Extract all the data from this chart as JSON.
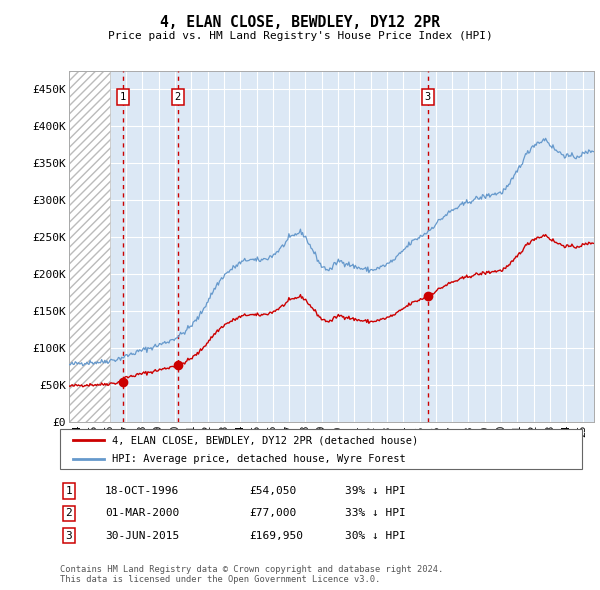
{
  "title": "4, ELAN CLOSE, BEWDLEY, DY12 2PR",
  "subtitle": "Price paid vs. HM Land Registry's House Price Index (HPI)",
  "ylabel_ticks": [
    "£0",
    "£50K",
    "£100K",
    "£150K",
    "£200K",
    "£250K",
    "£300K",
    "£350K",
    "£400K",
    "£450K"
  ],
  "ytick_values": [
    0,
    50000,
    100000,
    150000,
    200000,
    250000,
    300000,
    350000,
    400000,
    450000
  ],
  "ylim": [
    0,
    475000
  ],
  "xlim_start": 1993.5,
  "xlim_end": 2025.7,
  "sale_dates": [
    1996.8,
    2000.17,
    2015.5
  ],
  "sale_prices": [
    54050,
    77000,
    169950
  ],
  "sale_labels": [
    "1",
    "2",
    "3"
  ],
  "vline_color": "#cc0000",
  "sale_dot_color": "#cc0000",
  "hpi_line_color": "#6699cc",
  "price_line_color": "#cc0000",
  "legend_entries": [
    "4, ELAN CLOSE, BEWDLEY, DY12 2PR (detached house)",
    "HPI: Average price, detached house, Wyre Forest"
  ],
  "table_rows": [
    [
      "1",
      "18-OCT-1996",
      "£54,050",
      "39% ↓ HPI"
    ],
    [
      "2",
      "01-MAR-2000",
      "£77,000",
      "33% ↓ HPI"
    ],
    [
      "3",
      "30-JUN-2015",
      "£169,950",
      "30% ↓ HPI"
    ]
  ],
  "footer": "Contains HM Land Registry data © Crown copyright and database right 2024.\nThis data is licensed under the Open Government Licence v3.0.",
  "hatch_start": 1993.5,
  "hatch_end": 1996.0,
  "bg_color": "#dce8f5",
  "shade_between_1_2_color": "#dce8f5",
  "white_bg": "#ffffff"
}
